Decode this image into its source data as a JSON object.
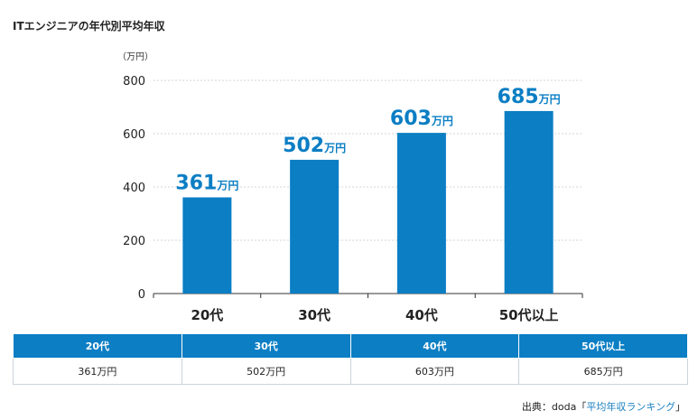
{
  "title": "ITエンジニアの年代別平均年収",
  "chart_data": {
    "type": "bar",
    "unit_label": "（万円）",
    "categories": [
      "20代",
      "30代",
      "40代",
      "50代以上"
    ],
    "values": [
      361,
      502,
      603,
      685
    ],
    "value_suffix": "万円",
    "yticks": [
      0,
      200,
      400,
      600,
      800
    ],
    "ylim": [
      0,
      800
    ],
    "bar_color": "#0b7ec4",
    "label_color": "#0b7ec4",
    "grid": true
  },
  "table": {
    "headers": [
      "20代",
      "30代",
      "40代",
      "50代以上"
    ],
    "values": [
      "361万円",
      "502万円",
      "603万円",
      "685万円"
    ]
  },
  "source": {
    "prefix": "出典：doda",
    "open_bracket": "「",
    "link_text": "平均年収ランキング",
    "close_bracket": "」"
  }
}
